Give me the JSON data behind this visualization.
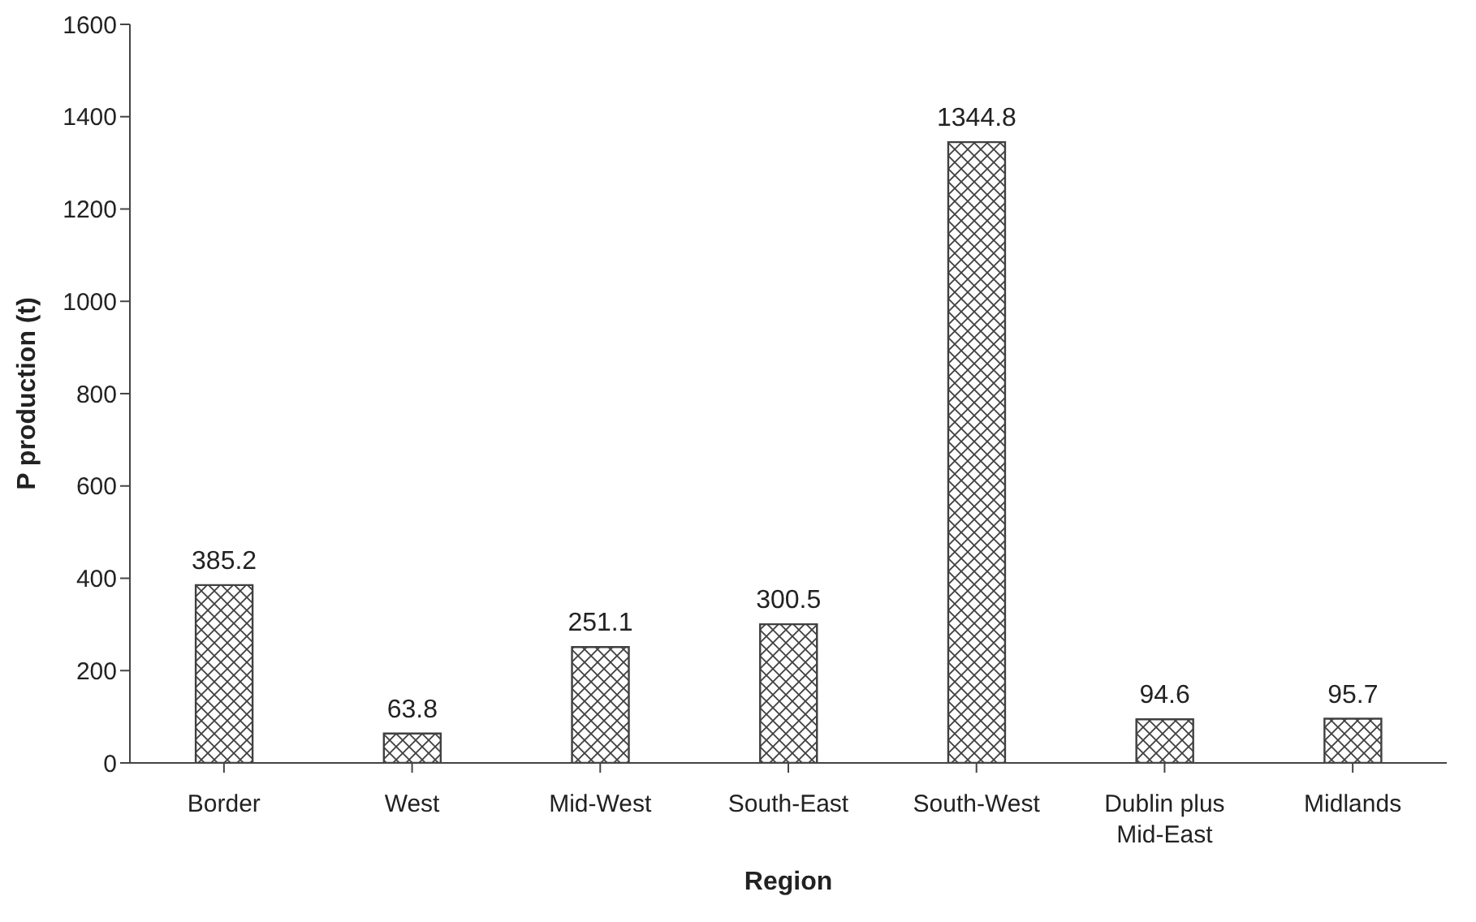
{
  "chart_data": {
    "type": "bar",
    "xlabel": "Region",
    "ylabel": "P production (t)",
    "categories": [
      "Border",
      "West",
      "Mid-West",
      "South-East",
      "South-West",
      "Dublin plus Mid-East",
      "Midlands"
    ],
    "values": [
      385.2,
      63.8,
      251.1,
      300.5,
      1344.8,
      94.6,
      95.7
    ],
    "color": "#404040",
    "ylim": [
      0,
      1600
    ],
    "yticks": [
      0,
      200,
      400,
      600,
      800,
      1000,
      1200,
      1400,
      1600
    ],
    "data_labels": true
  }
}
